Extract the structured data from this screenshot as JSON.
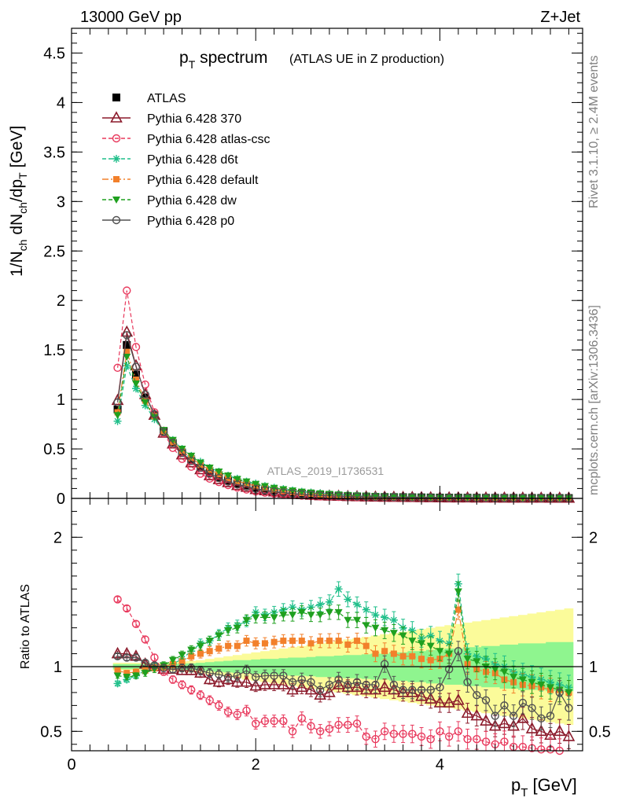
{
  "header": {
    "left": "13000 GeV pp",
    "right": "Z+Jet"
  },
  "side_labels": {
    "rivet_prefix": "Rivet 3.1.10, ",
    "rivet_ge": "≥",
    "rivet_suffix": " 2.4M events",
    "mcplots": "mcplots.cern.ch [arXiv:1306.3436]"
  },
  "analysis_id": "ATLAS_2019_I1736531",
  "colors": {
    "ATLAS": "#000000",
    "Pythia 6.428 370": "#8b1a2b",
    "Pythia 6.428 atlas-csc": "#e8385c",
    "Pythia 6.428 d6t": "#1fbf8a",
    "Pythia 6.428 default": "#f2802b",
    "Pythia 6.428 dw": "#1fa01f",
    "Pythia 6.428 p0": "#505050",
    "band_inner": "#8ff58f",
    "band_outer": "#fbfb9a"
  },
  "chart_data": [
    {
      "type": "scatter",
      "panel": "main",
      "title": "p_T spectrum",
      "title_main": "p",
      "title_sub": "T",
      "title_rest": " spectrum",
      "subtitle": "(ATLAS UE in Z production)",
      "xlabel": "p_T [GeV]",
      "ylabel": "1/N_ch dN_ch/dp_T [GeV]",
      "xlim": [
        0,
        5.55
      ],
      "ylim": [
        0,
        4.75
      ],
      "yticks": [
        0,
        0.5,
        1,
        1.5,
        2,
        2.5,
        3,
        3.5,
        4,
        4.5
      ],
      "ytick_labels": [
        "0",
        "0.5",
        "1",
        "1.5",
        "2",
        "2.5",
        "3",
        "3.5",
        "4",
        "4.5"
      ],
      "legend_position": "top-left",
      "x": [
        0.5,
        0.6,
        0.7,
        0.8,
        0.9,
        1.0,
        1.1,
        1.2,
        1.3,
        1.4,
        1.5,
        1.6,
        1.7,
        1.8,
        1.9,
        2.0,
        2.1,
        2.2,
        2.3,
        2.4,
        2.5,
        2.6,
        2.7,
        2.8,
        2.9,
        3.0,
        3.1,
        3.2,
        3.3,
        3.4,
        3.5,
        3.6,
        3.7,
        3.8,
        3.9,
        4.0,
        4.1,
        4.2,
        4.3,
        4.4,
        4.5,
        4.6,
        4.7,
        4.8,
        4.9,
        5.0,
        5.1,
        5.2,
        5.3,
        5.4
      ],
      "series": [
        {
          "name": "ATLAS",
          "values": [
            0.9,
            1.55,
            1.25,
            1.02,
            0.84,
            0.68,
            0.56,
            0.46,
            0.38,
            0.31,
            0.26,
            0.215,
            0.18,
            0.15,
            0.125,
            0.105,
            0.089,
            0.076,
            0.065,
            0.055,
            0.047,
            0.041,
            0.035,
            0.03,
            0.026,
            0.023,
            0.02,
            0.018,
            0.016,
            0.014,
            0.013,
            0.012,
            0.011,
            0.01,
            0.009,
            0.008,
            0.0075,
            0.007,
            0.0065,
            0.006,
            0.0055,
            0.005,
            0.0048,
            0.0045,
            0.0042,
            0.004,
            0.0038,
            0.0036,
            0.0034,
            0.0032
          ]
        },
        {
          "name": "Pythia 6.428 370",
          "values": [
            0.99,
            1.68,
            1.34,
            1.05,
            0.84,
            0.66,
            0.55,
            0.44,
            0.36,
            0.29,
            0.23,
            0.19,
            0.16,
            0.13,
            0.113,
            0.09,
            0.078,
            0.066,
            0.055,
            0.045,
            0.039,
            0.033,
            0.027,
            0.024,
            0.022,
            0.019,
            0.017,
            0.015,
            0.013,
            0.012,
            0.011,
            0.01,
            0.009,
            0.008,
            0.007,
            0.006,
            0.0055,
            0.0052,
            0.0049,
            0.0046,
            0.0043,
            0.004,
            0.0038,
            0.0036,
            0.0034,
            0.0032,
            0.003,
            0.0028,
            0.0026,
            0.0024
          ]
        },
        {
          "name": "Pythia 6.428 atlas-csc",
          "values": [
            1.32,
            2.1,
            1.53,
            1.15,
            0.87,
            0.66,
            0.51,
            0.4,
            0.32,
            0.25,
            0.2,
            0.165,
            0.135,
            0.11,
            0.09,
            0.07,
            0.058,
            0.048,
            0.04,
            0.033,
            0.028,
            0.023,
            0.02,
            0.017,
            0.015,
            0.013,
            0.011,
            0.01,
            0.009,
            0.008,
            0.007,
            0.0063,
            0.0057,
            0.0051,
            0.0046,
            0.0042,
            0.0038,
            0.0035,
            0.0032,
            0.0029,
            0.0027,
            0.0025,
            0.0023,
            0.0021,
            0.002,
            0.0019,
            0.0018,
            0.0017,
            0.0016,
            0.0015
          ]
        },
        {
          "name": "Pythia 6.428 d6t",
          "values": [
            0.78,
            1.34,
            1.11,
            0.94,
            0.8,
            0.68,
            0.59,
            0.5,
            0.43,
            0.37,
            0.31,
            0.27,
            0.23,
            0.2,
            0.17,
            0.15,
            0.125,
            0.108,
            0.094,
            0.08,
            0.068,
            0.06,
            0.052,
            0.045,
            0.039,
            0.034,
            0.03,
            0.026,
            0.023,
            0.02,
            0.018,
            0.016,
            0.014,
            0.013,
            0.012,
            0.011,
            0.01,
            0.009,
            0.0085,
            0.008,
            0.0075,
            0.007,
            0.0065,
            0.006,
            0.0056,
            0.0052,
            0.0048,
            0.0045,
            0.0042,
            0.004
          ]
        },
        {
          "name": "Pythia 6.428 default",
          "values": [
            0.87,
            1.48,
            1.2,
            0.99,
            0.83,
            0.68,
            0.57,
            0.48,
            0.41,
            0.34,
            0.29,
            0.245,
            0.205,
            0.175,
            0.15,
            0.125,
            0.105,
            0.09,
            0.078,
            0.066,
            0.056,
            0.048,
            0.042,
            0.036,
            0.031,
            0.027,
            0.024,
            0.021,
            0.018,
            0.016,
            0.014,
            0.013,
            0.012,
            0.011,
            0.01,
            0.009,
            0.0085,
            0.008,
            0.0075,
            0.007,
            0.0065,
            0.006,
            0.0056,
            0.0052,
            0.0048,
            0.0045,
            0.0042,
            0.004,
            0.0038,
            0.0036
          ]
        },
        {
          "name": "Pythia 6.428 dw",
          "values": [
            0.84,
            1.43,
            1.16,
            0.97,
            0.82,
            0.69,
            0.59,
            0.5,
            0.43,
            0.36,
            0.31,
            0.27,
            0.23,
            0.195,
            0.17,
            0.145,
            0.123,
            0.105,
            0.091,
            0.078,
            0.067,
            0.058,
            0.05,
            0.044,
            0.038,
            0.033,
            0.029,
            0.026,
            0.023,
            0.02,
            0.018,
            0.016,
            0.014,
            0.013,
            0.012,
            0.011,
            0.01,
            0.0095,
            0.009,
            0.0085,
            0.008,
            0.0075,
            0.007,
            0.0065,
            0.006,
            0.0056,
            0.0052,
            0.0048,
            0.0045,
            0.0042
          ]
        },
        {
          "name": "Pythia 6.428 p0",
          "values": [
            0.97,
            1.65,
            1.33,
            1.05,
            0.85,
            0.67,
            0.56,
            0.46,
            0.38,
            0.31,
            0.25,
            0.205,
            0.17,
            0.14,
            0.123,
            0.097,
            0.083,
            0.07,
            0.06,
            0.049,
            0.042,
            0.036,
            0.029,
            0.026,
            0.023,
            0.02,
            0.018,
            0.016,
            0.014,
            0.013,
            0.012,
            0.011,
            0.01,
            0.009,
            0.0082,
            0.0075,
            0.007,
            0.0065,
            0.006,
            0.0055,
            0.005,
            0.0046,
            0.0043,
            0.004,
            0.0037,
            0.0035,
            0.0033,
            0.0031,
            0.0029,
            0.0027
          ]
        }
      ]
    },
    {
      "type": "line",
      "panel": "ratio",
      "ylabel": "Ratio to ATLAS",
      "xlabel": "p_T [GeV]",
      "xlabel_main": "p",
      "xlabel_sub": "T",
      "xlabel_rest": " [GeV]",
      "xlim": [
        0,
        5.55
      ],
      "ylim": [
        0.35,
        2.3
      ],
      "xticks": [
        0,
        2,
        4
      ],
      "xtick_labels": [
        "0",
        "2",
        "4"
      ],
      "yticks": [
        0.5,
        1,
        2
      ],
      "ytick_labels": [
        "0.5",
        "1",
        "2"
      ],
      "reference_line": 1,
      "x": [
        0.5,
        0.6,
        0.7,
        0.8,
        0.9,
        1.0,
        1.1,
        1.2,
        1.3,
        1.4,
        1.5,
        1.6,
        1.7,
        1.8,
        1.9,
        2.0,
        2.1,
        2.2,
        2.3,
        2.4,
        2.5,
        2.6,
        2.7,
        2.8,
        2.9,
        3.0,
        3.1,
        3.2,
        3.3,
        3.4,
        3.5,
        3.6,
        3.7,
        3.8,
        3.9,
        4.0,
        4.1,
        4.2,
        4.3,
        4.4,
        4.5,
        4.6,
        4.7,
        4.8,
        4.9,
        5.0,
        5.1,
        5.2,
        5.3,
        5.4
      ],
      "band_inner_half_width": [
        0.02,
        0.02,
        0.02,
        0.02,
        0.02,
        0.02,
        0.02,
        0.025,
        0.025,
        0.03,
        0.035,
        0.04,
        0.045,
        0.05,
        0.05,
        0.055,
        0.06,
        0.06,
        0.065,
        0.07,
        0.07,
        0.075,
        0.08,
        0.08,
        0.085,
        0.09,
        0.09,
        0.095,
        0.1,
        0.1,
        0.11,
        0.11,
        0.12,
        0.12,
        0.13,
        0.13,
        0.14,
        0.14,
        0.15,
        0.15,
        0.16,
        0.16,
        0.17,
        0.17,
        0.18,
        0.18,
        0.18,
        0.19,
        0.19,
        0.19
      ],
      "band_outer_half_width": [
        0.03,
        0.03,
        0.03,
        0.03,
        0.03,
        0.03,
        0.035,
        0.04,
        0.045,
        0.05,
        0.06,
        0.07,
        0.08,
        0.09,
        0.1,
        0.11,
        0.12,
        0.13,
        0.14,
        0.15,
        0.16,
        0.17,
        0.18,
        0.19,
        0.2,
        0.21,
        0.22,
        0.23,
        0.24,
        0.25,
        0.26,
        0.27,
        0.28,
        0.29,
        0.3,
        0.31,
        0.32,
        0.33,
        0.34,
        0.35,
        0.36,
        0.37,
        0.38,
        0.39,
        0.4,
        0.41,
        0.42,
        0.43,
        0.44,
        0.45
      ],
      "series": [
        {
          "name": "Pythia 6.428 370",
          "values": [
            1.1,
            1.1,
            1.08,
            1.02,
            1.0,
            0.98,
            0.98,
            0.97,
            0.97,
            0.95,
            0.9,
            0.88,
            0.9,
            0.88,
            0.88,
            0.85,
            0.86,
            0.86,
            0.86,
            0.82,
            0.84,
            0.82,
            0.78,
            0.8,
            0.86,
            0.84,
            0.84,
            0.82,
            0.82,
            0.84,
            0.82,
            0.8,
            0.8,
            0.77,
            0.75,
            0.72,
            0.72,
            0.74,
            0.64,
            0.62,
            0.58,
            0.54,
            0.56,
            0.54,
            0.6,
            0.52,
            0.5,
            0.47,
            0.5,
            0.46
          ]
        },
        {
          "name": "Pythia 6.428 atlas-csc",
          "values": [
            1.52,
            1.45,
            1.33,
            1.21,
            1.07,
            0.96,
            0.9,
            0.86,
            0.82,
            0.78,
            0.74,
            0.7,
            0.65,
            0.63,
            0.66,
            0.56,
            0.58,
            0.58,
            0.58,
            0.5,
            0.6,
            0.54,
            0.5,
            0.52,
            0.55,
            0.55,
            0.56,
            0.46,
            0.44,
            0.5,
            0.48,
            0.48,
            0.48,
            0.46,
            0.44,
            0.5,
            0.46,
            0.5,
            0.44,
            0.44,
            0.42,
            0.4,
            0.42,
            0.38,
            0.38,
            0.37,
            0.36,
            0.36,
            0.35,
            0.34
          ]
        },
        {
          "name": "Pythia 6.428 d6t",
          "values": [
            0.87,
            0.9,
            0.93,
            0.97,
            1.0,
            1.0,
            1.02,
            1.06,
            1.12,
            1.18,
            1.2,
            1.25,
            1.3,
            1.32,
            1.35,
            1.42,
            1.4,
            1.42,
            1.44,
            1.46,
            1.44,
            1.46,
            1.48,
            1.5,
            1.6,
            1.52,
            1.48,
            1.44,
            1.4,
            1.38,
            1.36,
            1.3,
            1.28,
            1.22,
            1.24,
            1.2,
            1.18,
            1.64,
            1.1,
            1.08,
            1.06,
            1.02,
            1.0,
            0.96,
            0.94,
            0.92,
            0.9,
            0.88,
            0.86,
            0.84
          ]
        },
        {
          "name": "Pythia 6.428 default",
          "values": [
            0.97,
            0.95,
            0.96,
            0.97,
            0.99,
            1.0,
            1.02,
            1.04,
            1.08,
            1.1,
            1.12,
            1.14,
            1.16,
            1.16,
            1.2,
            1.18,
            1.18,
            1.19,
            1.2,
            1.2,
            1.2,
            1.18,
            1.2,
            1.2,
            1.2,
            1.17,
            1.2,
            1.16,
            1.1,
            1.12,
            1.1,
            1.08,
            1.08,
            1.06,
            1.05,
            1.06,
            1.1,
            1.44,
            1.02,
            0.98,
            0.96,
            0.95,
            0.9,
            0.88,
            0.86,
            0.85,
            0.84,
            0.82,
            0.82,
            0.8
          ]
        },
        {
          "name": "Pythia 6.428 dw",
          "values": [
            0.93,
            0.92,
            0.93,
            0.95,
            0.98,
            1.01,
            1.05,
            1.09,
            1.13,
            1.16,
            1.2,
            1.24,
            1.28,
            1.3,
            1.36,
            1.38,
            1.38,
            1.38,
            1.4,
            1.4,
            1.42,
            1.4,
            1.4,
            1.42,
            1.42,
            1.36,
            1.36,
            1.32,
            1.3,
            1.28,
            1.26,
            1.24,
            1.2,
            1.18,
            1.16,
            1.12,
            1.1,
            1.58,
            1.06,
            1.04,
            1.0,
            0.98,
            0.96,
            0.92,
            0.9,
            0.88,
            0.86,
            0.84,
            0.82,
            0.8
          ]
        },
        {
          "name": "Pythia 6.428 p0",
          "values": [
            1.08,
            1.07,
            1.07,
            1.03,
            1.01,
            0.99,
            0.98,
            0.99,
            0.99,
            0.97,
            0.95,
            0.94,
            0.92,
            0.93,
            0.97,
            0.92,
            0.93,
            0.93,
            0.93,
            0.88,
            0.9,
            0.88,
            0.82,
            0.86,
            0.9,
            0.86,
            0.88,
            0.86,
            0.86,
            1.02,
            0.86,
            0.82,
            0.82,
            0.82,
            0.82,
            0.84,
            0.98,
            1.12,
            0.88,
            0.78,
            0.74,
            0.62,
            0.7,
            0.62,
            0.72,
            0.68,
            0.6,
            0.62,
            0.8,
            0.68
          ]
        }
      ]
    }
  ]
}
